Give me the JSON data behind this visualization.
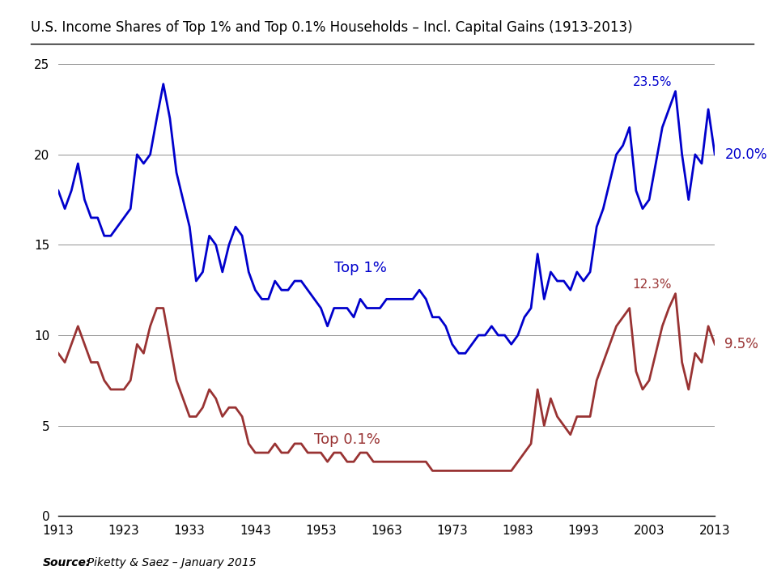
{
  "title": "U.S. Income Shares of Top 1% and Top 0.1% Households – Incl. Capital Gains (1913-2013)",
  "source_label": "Source:",
  "source_rest": "  Piketty & Saez – January 2015",
  "top1_label": "Top 1%",
  "top01_label": "Top 0.1%",
  "top1_color": "#0000CC",
  "top01_color": "#993333",
  "annotation_top1_peak": "23.5%",
  "annotation_top1_end": "20.0%",
  "annotation_top01_peak": "12.3%",
  "annotation_top01_end": "9.5%",
  "xlim": [
    1913,
    2013
  ],
  "ylim": [
    0,
    25
  ],
  "yticks": [
    0,
    5,
    10,
    15,
    20,
    25
  ],
  "xticks": [
    1913,
    1923,
    1933,
    1943,
    1953,
    1963,
    1973,
    1983,
    1993,
    2003,
    2013
  ],
  "top1_data": {
    "years": [
      1913,
      1914,
      1915,
      1916,
      1917,
      1918,
      1919,
      1920,
      1921,
      1922,
      1923,
      1924,
      1925,
      1926,
      1927,
      1928,
      1929,
      1930,
      1931,
      1932,
      1933,
      1934,
      1935,
      1936,
      1937,
      1938,
      1939,
      1940,
      1941,
      1942,
      1943,
      1944,
      1945,
      1946,
      1947,
      1948,
      1949,
      1950,
      1951,
      1952,
      1953,
      1954,
      1955,
      1956,
      1957,
      1958,
      1959,
      1960,
      1961,
      1962,
      1963,
      1964,
      1965,
      1966,
      1967,
      1968,
      1969,
      1970,
      1971,
      1972,
      1973,
      1974,
      1975,
      1976,
      1977,
      1978,
      1979,
      1980,
      1981,
      1982,
      1983,
      1984,
      1985,
      1986,
      1987,
      1988,
      1989,
      1990,
      1991,
      1992,
      1993,
      1994,
      1995,
      1996,
      1997,
      1998,
      1999,
      2000,
      2001,
      2002,
      2003,
      2004,
      2005,
      2006,
      2007,
      2008,
      2009,
      2010,
      2011,
      2012,
      2013
    ],
    "values": [
      18.0,
      17.0,
      18.0,
      19.5,
      17.5,
      16.5,
      16.5,
      15.5,
      15.5,
      16.0,
      16.5,
      17.0,
      20.0,
      19.5,
      20.0,
      22.0,
      23.9,
      22.0,
      19.0,
      17.5,
      16.0,
      13.0,
      13.5,
      15.5,
      15.0,
      13.5,
      15.0,
      16.0,
      15.5,
      13.5,
      12.5,
      12.0,
      12.0,
      13.0,
      12.5,
      12.5,
      13.0,
      13.0,
      12.5,
      12.0,
      11.5,
      10.5,
      11.5,
      11.5,
      11.5,
      11.0,
      12.0,
      11.5,
      11.5,
      11.5,
      12.0,
      12.0,
      12.0,
      12.0,
      12.0,
      12.5,
      12.0,
      11.0,
      11.0,
      10.5,
      9.5,
      9.0,
      9.0,
      9.5,
      10.0,
      10.0,
      10.5,
      10.0,
      10.0,
      9.5,
      10.0,
      11.0,
      11.5,
      14.5,
      12.0,
      13.5,
      13.0,
      13.0,
      12.5,
      13.5,
      13.0,
      13.5,
      16.0,
      17.0,
      18.5,
      20.0,
      20.5,
      21.5,
      18.0,
      17.0,
      17.5,
      19.5,
      21.5,
      22.5,
      23.5,
      20.0,
      17.5,
      20.0,
      19.5,
      22.5,
      20.0
    ]
  },
  "top01_data": {
    "years": [
      1913,
      1914,
      1915,
      1916,
      1917,
      1918,
      1919,
      1920,
      1921,
      1922,
      1923,
      1924,
      1925,
      1926,
      1927,
      1928,
      1929,
      1930,
      1931,
      1932,
      1933,
      1934,
      1935,
      1936,
      1937,
      1938,
      1939,
      1940,
      1941,
      1942,
      1943,
      1944,
      1945,
      1946,
      1947,
      1948,
      1949,
      1950,
      1951,
      1952,
      1953,
      1954,
      1955,
      1956,
      1957,
      1958,
      1959,
      1960,
      1961,
      1962,
      1963,
      1964,
      1965,
      1966,
      1967,
      1968,
      1969,
      1970,
      1971,
      1972,
      1973,
      1974,
      1975,
      1976,
      1977,
      1978,
      1979,
      1980,
      1981,
      1982,
      1983,
      1984,
      1985,
      1986,
      1987,
      1988,
      1989,
      1990,
      1991,
      1992,
      1993,
      1994,
      1995,
      1996,
      1997,
      1998,
      1999,
      2000,
      2001,
      2002,
      2003,
      2004,
      2005,
      2006,
      2007,
      2008,
      2009,
      2010,
      2011,
      2012,
      2013
    ],
    "values": [
      9.0,
      8.5,
      9.5,
      10.5,
      9.5,
      8.5,
      8.5,
      7.5,
      7.0,
      7.0,
      7.0,
      7.5,
      9.5,
      9.0,
      10.5,
      11.5,
      11.5,
      9.5,
      7.5,
      6.5,
      5.5,
      5.5,
      6.0,
      7.0,
      6.5,
      5.5,
      6.0,
      6.0,
      5.5,
      4.0,
      3.5,
      3.5,
      3.5,
      4.0,
      3.5,
      3.5,
      4.0,
      4.0,
      3.5,
      3.5,
      3.5,
      3.0,
      3.5,
      3.5,
      3.0,
      3.0,
      3.5,
      3.5,
      3.0,
      3.0,
      3.0,
      3.0,
      3.0,
      3.0,
      3.0,
      3.0,
      3.0,
      2.5,
      2.5,
      2.5,
      2.5,
      2.5,
      2.5,
      2.5,
      2.5,
      2.5,
      2.5,
      2.5,
      2.5,
      2.5,
      3.0,
      3.5,
      4.0,
      7.0,
      5.0,
      6.5,
      5.5,
      5.0,
      4.5,
      5.5,
      5.5,
      5.5,
      7.5,
      8.5,
      9.5,
      10.5,
      11.0,
      11.5,
      8.0,
      7.0,
      7.5,
      9.0,
      10.5,
      11.5,
      12.3,
      8.5,
      7.0,
      9.0,
      8.5,
      10.5,
      9.5
    ]
  }
}
